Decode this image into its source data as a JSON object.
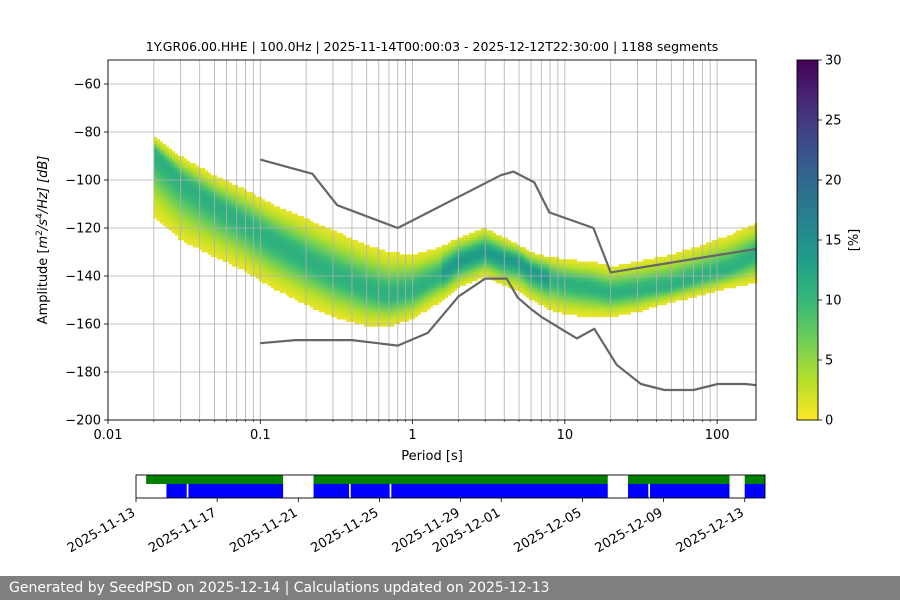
{
  "chart_data": {
    "type": "heatmap",
    "title": "1Y.GR06.00.HHE | 100.0Hz | 2025-11-14T00:00:03 - 2025-12-12T22:30:00 | 1188 segments",
    "xlabel": "Period [s]",
    "ylabel_pre": "Amplitude [",
    "ylabel_math": "m",
    "ylabel_sup1": "2",
    "ylabel_mid": "/s",
    "ylabel_sup2": "4",
    "ylabel_post": "/Hz] [dB]",
    "xscale": "log",
    "xlim": [
      0.01,
      180
    ],
    "ylim": [
      -200,
      -50
    ],
    "xticks": [
      {
        "v": 0.01,
        "label": "0.01"
      },
      {
        "v": 0.1,
        "label": "0.1"
      },
      {
        "v": 1,
        "label": "1"
      },
      {
        "v": 10,
        "label": "10"
      },
      {
        "v": 100,
        "label": "100"
      }
    ],
    "yticks": [
      {
        "v": -60,
        "label": "−60"
      },
      {
        "v": -80,
        "label": "−80"
      },
      {
        "v": -100,
        "label": "−100"
      },
      {
        "v": -120,
        "label": "−120"
      },
      {
        "v": -140,
        "label": "−140"
      },
      {
        "v": -160,
        "label": "−160"
      },
      {
        "v": -180,
        "label": "−180"
      },
      {
        "v": -200,
        "label": "−200"
      }
    ],
    "grid": true,
    "colorbar": {
      "label": "[%]",
      "min": 0,
      "max": 30,
      "ticks": [
        {
          "v": 0,
          "label": "0"
        },
        {
          "v": 5,
          "label": "5"
        },
        {
          "v": 10,
          "label": "10"
        },
        {
          "v": 15,
          "label": "15"
        },
        {
          "v": 20,
          "label": "20"
        },
        {
          "v": 25,
          "label": "25"
        },
        {
          "v": 30,
          "label": "30"
        }
      ],
      "colors": [
        "#fde725",
        "#b5de2b",
        "#6ece58",
        "#35b779",
        "#1f9e89",
        "#26828e",
        "#31688e",
        "#3e4989",
        "#482878",
        "#440154"
      ]
    },
    "ridge": {
      "x": [
        0.02,
        0.03,
        0.05,
        0.08,
        0.12,
        0.2,
        0.3,
        0.5,
        0.7,
        1.0,
        1.5,
        2.0,
        3.0,
        4.0,
        5.0,
        6.0,
        8.0,
        10,
        15,
        20,
        30,
        50,
        80,
        120,
        180
      ],
      "mode": [
        -88,
        -100,
        -110,
        -118,
        -125,
        -133,
        -139,
        -145,
        -148,
        -146,
        -140,
        -134,
        -130,
        -133,
        -134,
        -138,
        -141,
        -143,
        -145,
        -147,
        -146,
        -144,
        -140,
        -137,
        -131
      ],
      "low": [
        -115,
        -125,
        -132,
        -138,
        -145,
        -152,
        -157,
        -161,
        -161,
        -158,
        -151,
        -145,
        -140,
        -144,
        -146,
        -150,
        -154,
        -156,
        -157,
        -157,
        -155,
        -151,
        -148,
        -145,
        -143
      ],
      "high": [
        -82,
        -90,
        -98,
        -104,
        -110,
        -116,
        -121,
        -127,
        -130,
        -131,
        -128,
        -124,
        -120,
        -124,
        -127,
        -130,
        -132,
        -133,
        -134,
        -136,
        -134,
        -131,
        -127,
        -123,
        -118
      ]
    },
    "noise_model_high": {
      "x": [
        0.1,
        0.22,
        0.32,
        0.8,
        3.8,
        4.6,
        6.3,
        7.9,
        15.4,
        20,
        180
      ],
      "y": [
        -91.5,
        -97.4,
        -110.5,
        -120,
        -98,
        -96.5,
        -101,
        -113.5,
        -120,
        -138.5,
        -128.7
      ]
    },
    "noise_model_low": {
      "x": [
        0.1,
        0.17,
        0.4,
        0.8,
        1.26,
        2.0,
        3.0,
        4.15,
        4.9,
        6.0,
        7.0,
        10,
        12,
        15.6,
        21.9,
        31.6,
        45,
        70,
        101,
        154,
        180
      ],
      "y": [
        -168,
        -166.7,
        -166.7,
        -169,
        -163.7,
        -148.6,
        -141.1,
        -141.1,
        -149,
        -153.8,
        -157,
        -163,
        -166,
        -162,
        -177,
        -185,
        -187.5,
        -187.5,
        -185,
        -185,
        -185.5
      ]
    },
    "timeline": {
      "start": "2025-11-13",
      "end": "2025-12-14",
      "tick_dates": [
        "2025-11-13",
        "2025-11-17",
        "2025-11-21",
        "2025-11-25",
        "2025-11-29",
        "2025-12-01",
        "2025-12-05",
        "2025-12-09",
        "2025-12-13"
      ],
      "tick_labels": [
        "2025-11-13",
        "2025-11-17",
        "2025-11-21",
        "2025-11-25",
        "2025-11-29",
        "2025-12-01",
        "2025-12-05",
        "2025-12-09",
        "2025-12-13"
      ],
      "available_color": "#008000",
      "processed_color": "#0000ff",
      "available_spans": [
        [
          "2025-11-13T12:00",
          "2025-11-20T06:00"
        ],
        [
          "2025-11-21T18:00",
          "2025-12-06T06:00"
        ],
        [
          "2025-12-07T06:00",
          "2025-12-12T06:00"
        ],
        [
          "2025-12-13T00:00",
          "2025-12-14T00:00"
        ]
      ],
      "processed_spans": [
        [
          "2025-11-14T12:00",
          "2025-11-15T12:00"
        ],
        [
          "2025-11-15T14:00",
          "2025-11-20T06:00"
        ],
        [
          "2025-11-21T18:00",
          "2025-11-23T12:00"
        ],
        [
          "2025-11-23T14:00",
          "2025-11-25T12:00"
        ],
        [
          "2025-11-25T14:00",
          "2025-12-06T06:00"
        ],
        [
          "2025-12-07T06:00",
          "2025-12-08T06:00"
        ],
        [
          "2025-12-08T08:00",
          "2025-12-12T06:00"
        ],
        [
          "2025-12-13T00:00",
          "2025-12-14T00:00"
        ]
      ]
    }
  },
  "footer": {
    "text": "Generated by SeedPSD on 2025-12-14 | Calculations updated on 2025-12-13"
  }
}
